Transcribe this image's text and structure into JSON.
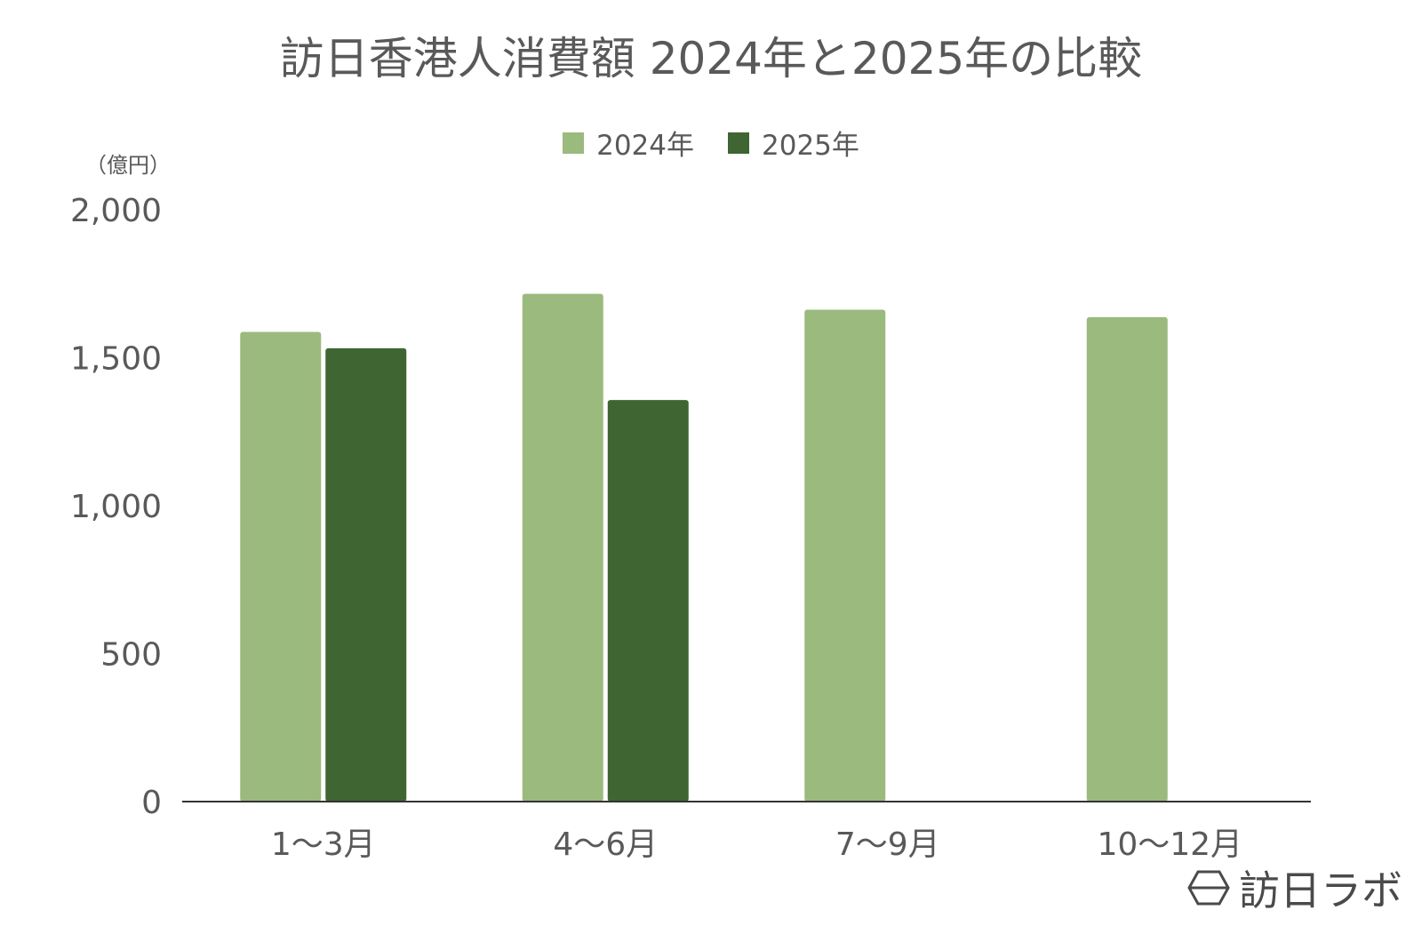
{
  "chart_data": {
    "type": "bar",
    "title": "訪日香港人消費額 2024年と2025年の比較",
    "unit_label": "（億円）",
    "categories": [
      "1〜3月",
      "4〜6月",
      "7〜9月",
      "10〜12月"
    ],
    "series": [
      {
        "name": "2024年",
        "color": "#9bba7d",
        "values": [
          1587,
          1716,
          1662,
          1637
        ]
      },
      {
        "name": "2025年",
        "color": "#3e6532",
        "values": [
          1532,
          1357,
          null,
          null
        ]
      }
    ],
    "ylim": [
      0,
      2000
    ],
    "yticks": [
      0,
      500,
      1000,
      1500,
      2000
    ],
    "ytick_labels": [
      "0",
      "500",
      "1,000",
      "1,500",
      "2,000"
    ],
    "grid": false,
    "legend_position": "top-center"
  },
  "watermark": {
    "text": "訪日ラボ",
    "icon": "hexagon-logo-icon"
  }
}
